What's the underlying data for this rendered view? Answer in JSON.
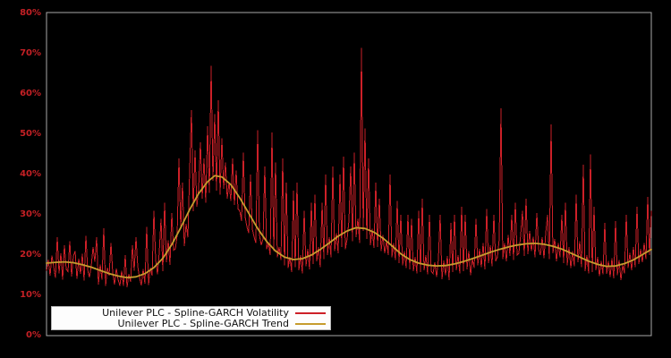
{
  "window": {
    "background": "#000000"
  },
  "chart_data": {
    "type": "line",
    "title": "",
    "xlabel": "",
    "ylabel": "",
    "x_axis_labels_visible": false,
    "grid": false,
    "legend_position": "bottom-left-inside",
    "ylim": [
      0,
      80
    ],
    "yticks": [
      "80%",
      "70%",
      "60%",
      "50%",
      "40%",
      "30%",
      "20%",
      "10%",
      "0%"
    ],
    "ytick_values": [
      80,
      70,
      60,
      50,
      40,
      30,
      20,
      10,
      0
    ],
    "colors": {
      "plot_background": "#000000",
      "plot_border": "#a9a9a9",
      "axis_label": "#c52025",
      "legend_background": "#fdfdfd",
      "volatility_red": "#cd2028",
      "trend_gold": "#c69c2e"
    },
    "series": [
      {
        "name": "Unilever PLC - Spline-GARCH Volatility",
        "color": "#cd2028",
        "style": "spiky-line",
        "unit": "percent",
        "values": [
          16.1,
          18.9,
          14.9,
          19.9,
          17.1,
          14.3,
          24.5,
          15.5,
          20.5,
          13.9,
          22.5,
          16.5,
          15.9,
          23.5,
          14.7,
          19.7,
          21.0,
          14.1,
          19.1,
          15.3,
          20.3,
          13.7,
          24.8,
          16.3,
          14.5,
          17.3,
          22.0,
          18.3,
          24.4,
          12.7,
          17.7,
          13.9,
          26.7,
          12.3,
          16.9,
          14.9,
          23.0,
          15.7,
          12.7,
          16.7,
          13.9,
          12.4,
          16.1,
          12.3,
          20.0,
          12.0,
          15.3,
          13.3,
          22.5,
          16.1,
          24.4,
          17.1,
          14.3,
          12.5,
          16.5,
          12.9,
          27.0,
          12.6,
          16.9,
          14.9,
          31.0,
          18.8,
          15.2,
          20.7,
          29.0,
          16.0,
          33.0,
          18.2,
          23.7,
          17.6,
          30.5,
          21.2,
          21.5,
          24.8,
          44.0,
          26.8,
          38.0,
          22.2,
          27.7,
          24.4,
          41.0,
          56.0,
          30.9,
          46.0,
          32.0,
          36.5,
          48.0,
          34.0,
          44.0,
          33.0,
          52.0,
          35.5,
          67.0,
          38.5,
          55.0,
          36.0,
          58.5,
          35.0,
          49.0,
          36.5,
          43.0,
          34.0,
          38.0,
          33.5,
          44.0,
          32.5,
          41.0,
          31.5,
          31.0,
          28.5,
          45.5,
          29.5,
          27.0,
          25.5,
          40.0,
          26.5,
          24.5,
          23.0,
          51.0,
          25.0,
          22.5,
          24.0,
          42.0,
          21.5,
          23.0,
          20.0,
          50.5,
          21.0,
          43.0,
          19.5,
          22.0,
          18.8,
          44.0,
          17.5,
          38.0,
          16.8,
          19.5,
          15.8,
          36.0,
          17.0,
          38.0,
          16.2,
          20.0,
          15.5,
          31.0,
          17.2,
          21.5,
          16.5,
          33.0,
          17.8,
          35.0,
          18.5,
          22.0,
          17.0,
          33.0,
          19.0,
          40.0,
          20.0,
          24.5,
          19.5,
          42.0,
          21.0,
          25.5,
          20.5,
          40.0,
          22.0,
          44.5,
          21.5,
          24.0,
          28.5,
          42.0,
          23.5,
          45.5,
          24.5,
          29.0,
          23.0,
          71.5,
          26.0,
          51.5,
          24.0,
          44.0,
          22.5,
          26.5,
          21.8,
          38.0,
          22.0,
          34.0,
          21.0,
          25.0,
          20.5,
          23.5,
          20.0,
          40.0,
          19.5,
          23.0,
          18.8,
          33.5,
          18.0,
          30.0,
          17.5,
          21.0,
          16.8,
          30.0,
          16.5,
          29.0,
          16.0,
          19.5,
          15.5,
          31.0,
          15.8,
          34.0,
          16.2,
          20.0,
          15.2,
          30.0,
          16.0,
          15.4,
          18.2,
          14.6,
          19.0,
          30.0,
          14.0,
          18.6,
          15.0,
          19.8,
          13.8,
          28.0,
          15.8,
          30.0,
          16.2,
          20.0,
          15.5,
          32.0,
          16.0,
          30.0,
          16.5,
          21.0,
          15.0,
          19.0,
          16.8,
          29.0,
          17.5,
          21.5,
          17.0,
          23.0,
          16.5,
          31.5,
          18.0,
          22.5,
          17.2,
          30.0,
          18.5,
          19.5,
          24.0,
          56.5,
          19.0,
          23.0,
          18.5,
          25.0,
          19.8,
          30.0,
          18.8,
          33.0,
          20.0,
          20.5,
          25.0,
          31.0,
          19.8,
          34.0,
          20.2,
          26.0,
          21.0,
          24.5,
          19.5,
          30.5,
          21.5,
          20.0,
          24.5,
          19.2,
          25.5,
          30.0,
          19.0,
          52.5,
          20.5,
          24.0,
          18.5,
          23.0,
          19.5,
          30.0,
          18.0,
          33.0,
          17.5,
          22.0,
          16.8,
          21.0,
          17.2,
          35.0,
          18.2,
          23.5,
          17.0,
          42.5,
          16.0,
          20.0,
          15.5,
          45.0,
          15.8,
          32.0,
          16.2,
          19.5,
          14.8,
          18.5,
          15.2,
          28.0,
          15.3,
          18.5,
          14.6,
          19.2,
          14.2,
          28.5,
          15.0,
          18.8,
          13.8,
          17.5,
          15.5,
          30.0,
          16.8,
          20.5,
          16.2,
          22.0,
          17.0,
          32.0,
          17.8,
          21.5,
          18.2,
          23.0,
          19.0,
          34.5,
          20.0,
          31.0
        ]
      },
      {
        "name": "Unilever PLC - Spline-GARCH Trend",
        "color": "#c69c2e",
        "style": "smooth-line",
        "unit": "percent",
        "points": [
          [
            0,
            18.0
          ],
          [
            5,
            18.2
          ],
          [
            10,
            18.3
          ],
          [
            15,
            18.1
          ],
          [
            20,
            17.6
          ],
          [
            25,
            17.0
          ],
          [
            30,
            16.2
          ],
          [
            35,
            15.4
          ],
          [
            40,
            14.8
          ],
          [
            45,
            14.4
          ],
          [
            50,
            14.6
          ],
          [
            55,
            15.4
          ],
          [
            60,
            16.9
          ],
          [
            65,
            19.2
          ],
          [
            70,
            22.6
          ],
          [
            75,
            26.8
          ],
          [
            80,
            31.3
          ],
          [
            85,
            35.3
          ],
          [
            90,
            38.2
          ],
          [
            94,
            39.7
          ],
          [
            98,
            39.4
          ],
          [
            103,
            37.5
          ],
          [
            108,
            34.2
          ],
          [
            113,
            30.4
          ],
          [
            118,
            26.6
          ],
          [
            123,
            23.4
          ],
          [
            128,
            21.0
          ],
          [
            133,
            19.5
          ],
          [
            138,
            18.9
          ],
          [
            143,
            19.1
          ],
          [
            148,
            20.0
          ],
          [
            153,
            21.4
          ],
          [
            158,
            23.0
          ],
          [
            163,
            24.7
          ],
          [
            168,
            26.0
          ],
          [
            173,
            26.8
          ],
          [
            178,
            26.6
          ],
          [
            183,
            25.7
          ],
          [
            188,
            24.2
          ],
          [
            193,
            22.3
          ],
          [
            198,
            20.3
          ],
          [
            203,
            18.9
          ],
          [
            208,
            18.0
          ],
          [
            213,
            17.5
          ],
          [
            218,
            17.3
          ],
          [
            223,
            17.4
          ],
          [
            228,
            17.8
          ],
          [
            233,
            18.4
          ],
          [
            238,
            19.1
          ],
          [
            243,
            19.9
          ],
          [
            248,
            20.7
          ],
          [
            253,
            21.4
          ],
          [
            258,
            22.0
          ],
          [
            263,
            22.5
          ],
          [
            268,
            22.8
          ],
          [
            273,
            22.9
          ],
          [
            278,
            22.7
          ],
          [
            283,
            22.2
          ],
          [
            288,
            21.5
          ],
          [
            293,
            20.5
          ],
          [
            298,
            19.5
          ],
          [
            303,
            18.5
          ],
          [
            308,
            17.7
          ],
          [
            313,
            17.2
          ],
          [
            318,
            17.3
          ],
          [
            323,
            17.9
          ],
          [
            328,
            18.8
          ],
          [
            333,
            20.1
          ],
          [
            338,
            21.4
          ]
        ]
      }
    ]
  }
}
